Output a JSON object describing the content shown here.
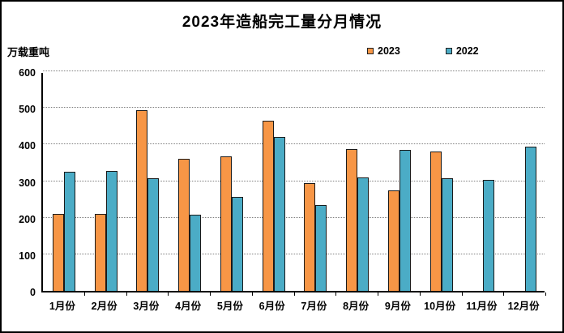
{
  "window": {
    "background": "#ffffff",
    "border_color": "#000000"
  },
  "chart_data": {
    "type": "bar",
    "title": "2023年造船完工量分月情况",
    "ylabel": "万载重吨",
    "xlabel": "",
    "categories": [
      "1月份",
      "2月份",
      "3月份",
      "4月份",
      "5月份",
      "6月份",
      "7月份",
      "8月份",
      "9月份",
      "10月份",
      "11月份",
      "12月份"
    ],
    "series": [
      {
        "name": "2023",
        "color": "#F79646",
        "values": [
          210,
          211,
          494,
          362,
          367,
          465,
          295,
          388,
          275,
          380,
          null,
          null
        ]
      },
      {
        "name": "2022",
        "color": "#4BACC6",
        "values": [
          326,
          328,
          308,
          209,
          256,
          421,
          234,
          309,
          385,
          307,
          303,
          395
        ]
      }
    ],
    "ylim": [
      0,
      600
    ],
    "yticks": [
      0,
      100,
      200,
      300,
      400,
      500,
      600
    ],
    "grid": "horizontal dotted gridlines every 100",
    "legend_position": "top-right",
    "bar_border_color": "#1a1a1a",
    "gridline_color": "#7f7f7f"
  }
}
